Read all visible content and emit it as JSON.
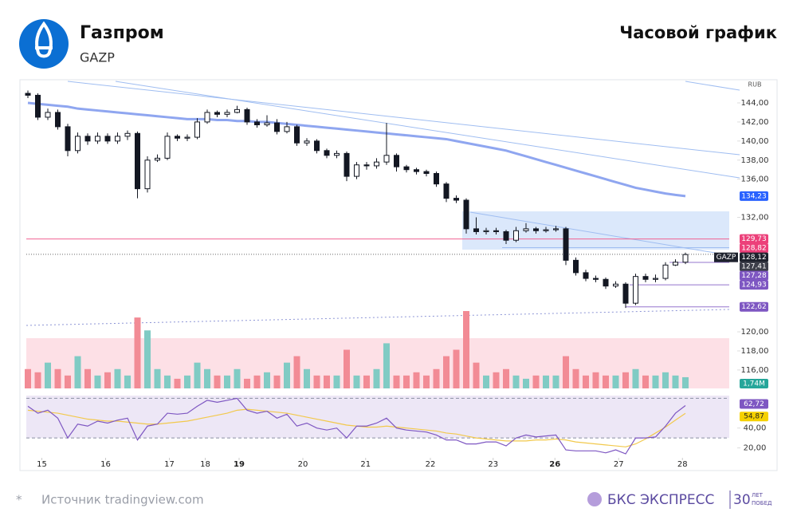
{
  "header": {
    "title": "Газпром",
    "ticker": "GAZP",
    "chart_kind": "Часовой график"
  },
  "footer": {
    "asterisk": "*",
    "source": "Источник tradingview.com",
    "brand": "БКС ЭКСПРЕСС",
    "years": "30",
    "years_top": "ЛЕТ",
    "years_bottom": "ПОБЕД"
  },
  "chart_data": {
    "type": "candlestick",
    "currency": "RUB",
    "candles": [
      [
        145,
        145.3,
        144.5,
        144.8
      ],
      [
        144.8,
        145,
        142.2,
        142.5
      ],
      [
        142.5,
        143.4,
        142.2,
        143
      ],
      [
        143,
        143.3,
        141.2,
        141.5
      ],
      [
        141.5,
        141.8,
        138.4,
        139
      ],
      [
        139,
        140.9,
        138.7,
        140.5
      ],
      [
        140.5,
        140.8,
        139.6,
        140
      ],
      [
        140,
        140.9,
        139.7,
        140.5
      ],
      [
        140.5,
        140.8,
        139.7,
        140
      ],
      [
        140,
        140.9,
        139.7,
        140.5
      ],
      [
        140.5,
        141.1,
        140.1,
        140.8
      ],
      [
        140.8,
        141,
        134,
        135
      ],
      [
        135,
        138.4,
        134.6,
        138
      ],
      [
        138,
        138.6,
        137.8,
        138.2
      ],
      [
        138.2,
        140.9,
        138,
        140.5
      ],
      [
        140.5,
        140.7,
        140,
        140.3
      ],
      [
        140.3,
        140.7,
        140,
        140.4
      ],
      [
        140.4,
        142.4,
        140.2,
        142
      ],
      [
        142,
        143.3,
        141.8,
        143
      ],
      [
        143,
        143.2,
        142.5,
        142.8
      ],
      [
        142.8,
        143.3,
        142.5,
        143
      ],
      [
        143,
        143.7,
        142.9,
        143.3
      ],
      [
        143.3,
        143.5,
        141.7,
        142
      ],
      [
        142,
        142.3,
        141.4,
        141.7
      ],
      [
        141.7,
        142.7,
        141.5,
        141.9
      ],
      [
        141.9,
        142.3,
        140.7,
        141
      ],
      [
        141,
        142,
        140.8,
        141.5
      ],
      [
        141.5,
        141.7,
        139.5,
        139.8
      ],
      [
        139.8,
        140.3,
        139.5,
        140
      ],
      [
        140,
        140.2,
        138.7,
        139
      ],
      [
        139,
        139.2,
        138.2,
        138.5
      ],
      [
        138.5,
        139,
        138.2,
        138.7
      ],
      [
        138.7,
        138.9,
        135.8,
        136.3
      ],
      [
        136.3,
        137.8,
        136,
        137.5
      ],
      [
        137.5,
        137.8,
        137,
        137.4
      ],
      [
        137.4,
        138.2,
        137.1,
        137.8
      ],
      [
        137.8,
        141.9,
        137.5,
        138.5
      ],
      [
        138.5,
        138.7,
        136.8,
        137.3
      ],
      [
        137.3,
        137.5,
        136.7,
        137
      ],
      [
        137,
        137.2,
        136.5,
        136.8
      ],
      [
        136.8,
        137,
        136.3,
        136.6
      ],
      [
        136.6,
        136.8,
        135.2,
        135.5
      ],
      [
        135.5,
        135.7,
        133.6,
        134
      ],
      [
        134,
        134.3,
        133.5,
        133.8
      ],
      [
        133.8,
        134,
        130.3,
        130.8
      ],
      [
        130.8,
        132,
        130.2,
        130.5
      ],
      [
        130.5,
        130.9,
        130.2,
        130.6
      ],
      [
        130.6,
        130.9,
        130.2,
        130.5
      ],
      [
        130.5,
        130.7,
        129.2,
        129.6
      ],
      [
        129.6,
        131,
        129.4,
        130.6
      ],
      [
        130.6,
        131.4,
        130.4,
        130.8
      ],
      [
        130.8,
        131,
        130.3,
        130.6
      ],
      [
        130.6,
        131,
        130.4,
        130.7
      ],
      [
        130.7,
        131.1,
        130.5,
        130.8
      ],
      [
        130.8,
        131,
        127,
        127.5
      ],
      [
        127.5,
        127.8,
        125.9,
        126.2
      ],
      [
        126.2,
        126.5,
        125.3,
        125.6
      ],
      [
        125.6,
        125.9,
        125.2,
        125.5
      ],
      [
        125.5,
        125.7,
        124.5,
        124.8
      ],
      [
        124.8,
        125.3,
        124.6,
        125
      ],
      [
        125,
        125.2,
        122.5,
        123
      ],
      [
        123,
        126.1,
        122.8,
        125.8
      ],
      [
        125.8,
        126.1,
        125.2,
        125.5
      ],
      [
        125.5,
        126,
        125.2,
        125.6
      ],
      [
        125.6,
        127.3,
        125.4,
        127
      ],
      [
        127,
        127.6,
        126.9,
        127.3
      ],
      [
        127.3,
        128.3,
        127.1,
        128.1
      ]
    ],
    "ma": [
      144,
      143.9,
      143.8,
      143.7,
      143.6,
      143.4,
      143.3,
      143.2,
      143.1,
      143,
      142.9,
      142.8,
      142.7,
      142.6,
      142.5,
      142.4,
      142.3,
      142.3,
      142.3,
      142.2,
      142.2,
      142.1,
      142.1,
      142,
      142,
      141.9,
      141.8,
      141.7,
      141.6,
      141.5,
      141.4,
      141.3,
      141.2,
      141.1,
      141,
      140.9,
      140.8,
      140.7,
      140.6,
      140.5,
      140.4,
      140.3,
      140.2,
      140,
      139.8,
      139.6,
      139.4,
      139.2,
      139,
      138.7,
      138.4,
      138.1,
      137.8,
      137.5,
      137.2,
      136.9,
      136.6,
      136.3,
      136,
      135.7,
      135.4,
      135.1,
      134.9,
      134.7,
      134.5,
      134.35,
      134.23
    ],
    "volume": {
      "values": [
        3,
        2.5,
        4,
        3,
        2,
        5,
        3,
        2,
        2.5,
        3,
        2,
        11,
        9,
        3,
        2,
        1.5,
        2,
        4,
        3,
        2,
        2,
        3,
        1.5,
        2,
        2.5,
        2,
        4,
        5,
        3,
        2,
        2,
        2,
        6,
        2,
        2,
        3,
        7,
        2,
        2,
        2.5,
        2,
        3,
        5,
        6,
        12,
        4,
        2,
        2.5,
        3,
        2,
        1.5,
        2,
        2,
        2,
        5,
        3,
        2,
        2.5,
        2,
        2,
        2.5,
        3,
        2,
        2,
        2.5,
        2,
        1.74
      ],
      "last_label": {
        "value": 1.74,
        "label": "1,74M"
      }
    },
    "rsi": {
      "values": [
        62,
        55,
        58,
        50,
        30,
        44,
        42,
        47,
        45,
        48,
        50,
        28,
        42,
        44,
        55,
        54,
        55,
        62,
        68,
        66,
        68,
        70,
        58,
        55,
        57,
        50,
        54,
        42,
        45,
        40,
        38,
        40,
        30,
        42,
        42,
        45,
        50,
        40,
        38,
        37,
        36,
        33,
        28,
        28,
        24,
        24,
        26,
        26,
        22,
        30,
        33,
        31,
        32,
        33,
        18,
        17,
        17,
        17,
        15,
        18,
        14,
        30,
        30,
        31,
        42,
        55,
        62.72
      ],
      "ma": [
        58,
        57,
        56,
        55,
        53,
        51,
        49,
        48,
        47,
        47,
        46,
        45,
        44,
        44,
        45,
        46,
        47,
        49,
        51,
        53,
        55,
        58,
        59,
        58,
        57,
        56,
        55,
        53,
        51,
        49,
        47,
        45,
        43,
        42,
        41,
        41,
        42,
        41,
        40,
        39,
        38,
        37,
        35,
        34,
        32,
        30,
        29,
        28,
        27,
        27,
        27,
        28,
        28,
        29,
        28,
        26,
        25,
        24,
        23,
        22,
        21,
        24,
        29,
        35,
        41,
        48,
        54.87
      ],
      "ylim": [
        10,
        80
      ],
      "yticks": [
        {
          "value": 40,
          "label": "40,00"
        },
        {
          "value": 20,
          "label": "20,00"
        }
      ],
      "bands": [
        70,
        30
      ],
      "labels": [
        {
          "value": 62.72,
          "label": "62,72",
          "color": "#7e57c2"
        },
        {
          "value": 54.87,
          "label": "54,87",
          "color": "#f5d100"
        }
      ]
    },
    "ylim": [
      113.5,
      146
    ],
    "yticks": [
      {
        "value": 144,
        "label": "144,00"
      },
      {
        "value": 142,
        "label": "142,00"
      },
      {
        "value": 140,
        "label": "140,00"
      },
      {
        "value": 138,
        "label": "138,00"
      },
      {
        "value": 136,
        "label": "136,00"
      },
      {
        "value": 132,
        "label": "132,00"
      },
      {
        "value": 120,
        "label": "120,00"
      },
      {
        "value": 118,
        "label": "118,00"
      },
      {
        "value": 116,
        "label": "116,00"
      }
    ],
    "xticks": [
      {
        "value": 1.4,
        "label": "15"
      },
      {
        "value": 7.8,
        "label": "16"
      },
      {
        "value": 14.2,
        "label": "17"
      },
      {
        "value": 17.8,
        "label": "18"
      },
      {
        "value": 21.2,
        "label": "19",
        "bold": true
      },
      {
        "value": 27.6,
        "label": "20"
      },
      {
        "value": 33.9,
        "label": "21"
      },
      {
        "value": 40.4,
        "label": "22"
      },
      {
        "value": 46.7,
        "label": "23"
      },
      {
        "value": 52.9,
        "label": "26",
        "bold": true
      },
      {
        "value": 59.3,
        "label": "27"
      },
      {
        "value": 65.7,
        "label": "28"
      }
    ],
    "price_labels": [
      {
        "value": 134.23,
        "label": "134,23",
        "color": "#2962ff"
      },
      {
        "value": 129.73,
        "label": "129,73",
        "color": "#ec407a"
      },
      {
        "value": 128.82,
        "label": "128,82",
        "color": "#ec407a"
      },
      {
        "value": 128.12,
        "label": "128,12",
        "name": "GAZP",
        "color": "#1e222d"
      },
      {
        "value": 127.41,
        "label": "127,41",
        "color": "#3d3f4a"
      },
      {
        "value": 127.28,
        "label": "127,28",
        "color": "#7e57c2"
      },
      {
        "value": 124.93,
        "label": "124,93",
        "color": "#7e57c2"
      },
      {
        "value": 122.62,
        "label": "122,62",
        "color": "#7e57c2"
      }
    ],
    "up_color": "#ffffff",
    "down_color": "#131722",
    "volume_up": "#80cbc4",
    "volume_down": "#f28b95",
    "ma_color": "#8fa6f0"
  }
}
